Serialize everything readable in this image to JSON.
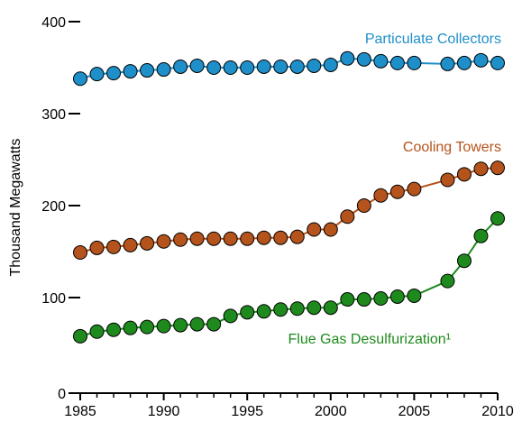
{
  "chart_data": {
    "type": "line",
    "title": "",
    "xlabel": "",
    "ylabel": "Thousand Megawatts",
    "xlim": [
      1985,
      2010
    ],
    "ylim": [
      0,
      400
    ],
    "x_ticks": [
      1985,
      1990,
      1995,
      2000,
      2005,
      2010
    ],
    "y_ticks": [
      0,
      100,
      200,
      300,
      400
    ],
    "grid": false,
    "legend": "inline-labels",
    "series": [
      {
        "name": "Particulate Collectors",
        "color": "#1f8fc9",
        "x": [
          1985,
          1986,
          1987,
          1988,
          1989,
          1990,
          1991,
          1992,
          1993,
          1994,
          1995,
          1996,
          1997,
          1998,
          1999,
          2000,
          2001,
          2002,
          2003,
          2004,
          2005,
          2007,
          2008,
          2009,
          2010
        ],
        "values": [
          338,
          343,
          344,
          346,
          347,
          348,
          351,
          352,
          350,
          350,
          350,
          351,
          351,
          351,
          352,
          353,
          360,
          359,
          357,
          355,
          355,
          354,
          355,
          358,
          355
        ]
      },
      {
        "name": "Cooling Towers",
        "color": "#b5531c",
        "x": [
          1985,
          1986,
          1987,
          1988,
          1989,
          1990,
          1991,
          1992,
          1993,
          1994,
          1995,
          1996,
          1997,
          1998,
          1999,
          2000,
          2001,
          2002,
          2003,
          2004,
          2005,
          2007,
          2008,
          2009,
          2010
        ],
        "values": [
          149,
          154,
          155,
          157,
          159,
          161,
          163,
          164,
          164,
          164,
          164,
          165,
          165,
          166,
          174,
          174,
          188,
          200,
          211,
          215,
          218,
          228,
          234,
          240,
          241
        ]
      },
      {
        "name": "Flue Gas Desulfurization¹",
        "color": "#1e8a1e",
        "x": [
          1985,
          1986,
          1987,
          1988,
          1989,
          1990,
          1991,
          1992,
          1993,
          1994,
          1995,
          1996,
          1997,
          1998,
          1999,
          2000,
          2001,
          2002,
          2003,
          2004,
          2005,
          2007,
          2008,
          2009,
          2010
        ],
        "values": [
          58,
          63,
          65,
          67,
          68,
          69,
          70,
          71,
          71,
          80,
          84,
          85,
          87,
          88,
          89,
          89,
          98,
          98,
          99,
          101,
          102,
          118,
          140,
          167,
          186
        ]
      }
    ]
  }
}
